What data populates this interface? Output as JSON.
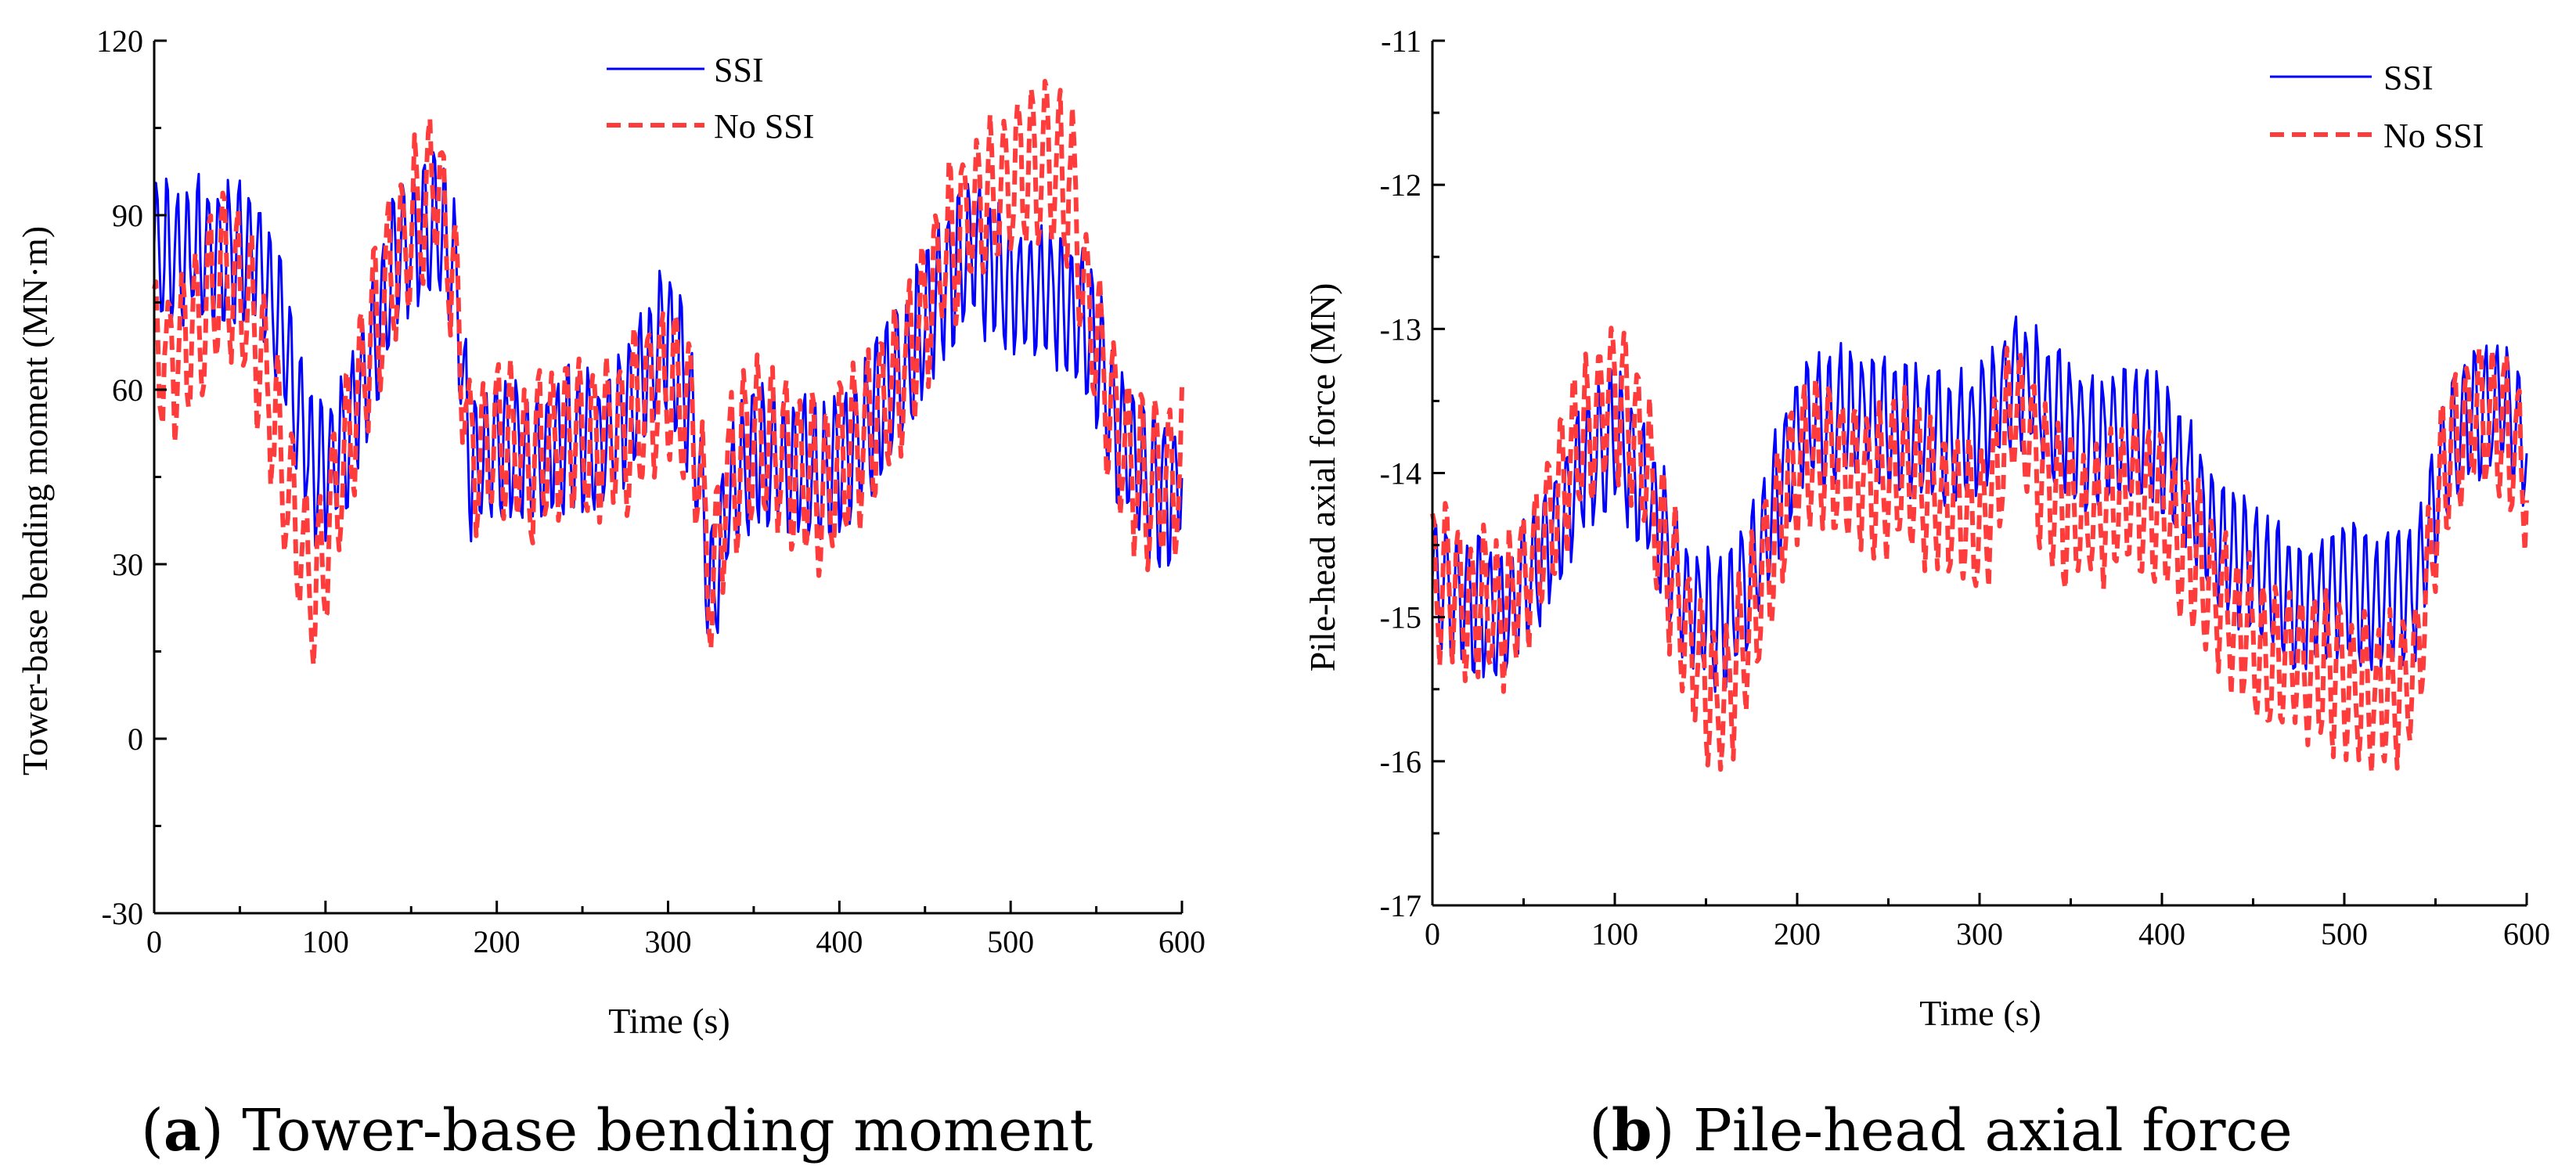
{
  "colors": {
    "ssi": "#0000ff",
    "no_ssi": "#ff3c3c",
    "axis": "#000000"
  },
  "chart_data": [
    {
      "id": "a",
      "type": "line",
      "caption_letter": "a",
      "caption_text": " Tower-base bending moment",
      "xlabel": "Time (s)",
      "ylabel": "Tower-base bending moment (MN·m)",
      "xlim": [
        0,
        600
      ],
      "ylim": [
        -30,
        120
      ],
      "xticks": [
        "0",
        "100",
        "200",
        "300",
        "400",
        "500",
        "600"
      ],
      "yticks": [
        "-30",
        "0",
        "30",
        "60",
        "90",
        "120"
      ],
      "legend_position": "top-center",
      "legend": [
        "SSI",
        "No SSI"
      ],
      "series": [
        {
          "name": "SSI",
          "amplitude": 12,
          "period_s": 6,
          "trend_t": [
            0,
            10,
            25,
            45,
            55,
            70,
            85,
            95,
            110,
            125,
            140,
            155,
            165,
            175,
            185,
            200,
            220,
            240,
            260,
            280,
            290,
            300,
            315,
            325,
            335,
            350,
            370,
            390,
            405,
            420,
            440,
            460,
            475,
            490,
            510,
            530,
            545,
            560,
            575,
            590,
            600
          ],
          "trend_v": [
            85,
            83,
            84,
            83,
            85,
            75,
            55,
            45,
            50,
            65,
            82,
            88,
            88,
            80,
            45,
            52,
            48,
            52,
            50,
            58,
            65,
            70,
            55,
            25,
            40,
            50,
            48,
            45,
            50,
            55,
            65,
            78,
            85,
            80,
            76,
            76,
            72,
            55,
            45,
            42,
            45
          ]
        },
        {
          "name": "No SSI",
          "amplitude": 13,
          "period_s": 8,
          "trend_t": [
            0,
            10,
            25,
            40,
            55,
            70,
            85,
            95,
            105,
            120,
            140,
            155,
            165,
            175,
            185,
            200,
            220,
            240,
            260,
            280,
            290,
            300,
            315,
            325,
            335,
            350,
            370,
            390,
            405,
            420,
            440,
            460,
            475,
            490,
            505,
            520,
            535,
            545,
            560,
            575,
            590,
            600
          ],
          "trend_v": [
            68,
            65,
            72,
            80,
            75,
            55,
            32,
            25,
            40,
            60,
            82,
            92,
            96,
            80,
            48,
            52,
            48,
            52,
            50,
            55,
            60,
            62,
            55,
            25,
            45,
            52,
            48,
            42,
            48,
            55,
            65,
            82,
            90,
            92,
            98,
            100,
            95,
            75,
            55,
            45,
            44,
            45
          ]
        }
      ]
    },
    {
      "id": "b",
      "type": "line",
      "caption_letter": "b",
      "caption_text": " Pile-head axial force",
      "xlabel": "Time (s)",
      "ylabel": "Pile-head axial force (MN)",
      "xlim": [
        0,
        600
      ],
      "ylim": [
        -17,
        -11
      ],
      "xticks": [
        "0",
        "100",
        "200",
        "300",
        "400",
        "500",
        "600"
      ],
      "yticks": [
        "-17",
        "-16",
        "-15",
        "-14",
        "-13",
        "-12",
        "-11"
      ],
      "legend_position": "top-right",
      "legend": [
        "SSI",
        "No SSI"
      ],
      "series": [
        {
          "name": "SSI",
          "amplitude": 0.45,
          "period_s": 6,
          "trend_t": [
            0,
            20,
            40,
            60,
            80,
            100,
            120,
            140,
            160,
            180,
            200,
            220,
            240,
            260,
            280,
            300,
            320,
            340,
            360,
            380,
            400,
            420,
            440,
            460,
            480,
            500,
            520,
            540,
            555,
            570,
            585,
            600
          ],
          "trend_v": [
            -14.8,
            -14.9,
            -15.0,
            -14.6,
            -14.0,
            -13.7,
            -14.2,
            -14.9,
            -15.1,
            -14.5,
            -13.7,
            -13.6,
            -13.6,
            -13.7,
            -13.8,
            -13.7,
            -13.3,
            -13.6,
            -13.8,
            -13.7,
            -13.8,
            -14.2,
            -14.6,
            -14.8,
            -14.9,
            -14.8,
            -14.9,
            -14.8,
            -13.9,
            -13.6,
            -13.5,
            -13.8
          ]
        },
        {
          "name": "No SSI",
          "amplitude": 0.5,
          "period_s": 7,
          "trend_t": [
            0,
            20,
            40,
            60,
            80,
            100,
            120,
            140,
            160,
            180,
            200,
            220,
            240,
            260,
            280,
            300,
            320,
            340,
            360,
            380,
            400,
            420,
            440,
            460,
            480,
            500,
            520,
            540,
            555,
            570,
            585,
            600
          ],
          "trend_v": [
            -14.7,
            -14.9,
            -15.0,
            -14.5,
            -13.8,
            -13.4,
            -14.1,
            -15.2,
            -15.6,
            -14.8,
            -13.9,
            -13.9,
            -14.0,
            -14.0,
            -14.2,
            -14.4,
            -13.5,
            -14.2,
            -14.3,
            -14.1,
            -14.3,
            -14.6,
            -15.0,
            -15.3,
            -15.3,
            -15.4,
            -15.6,
            -15.3,
            -13.9,
            -13.6,
            -13.6,
            -14.0
          ]
        }
      ]
    }
  ]
}
